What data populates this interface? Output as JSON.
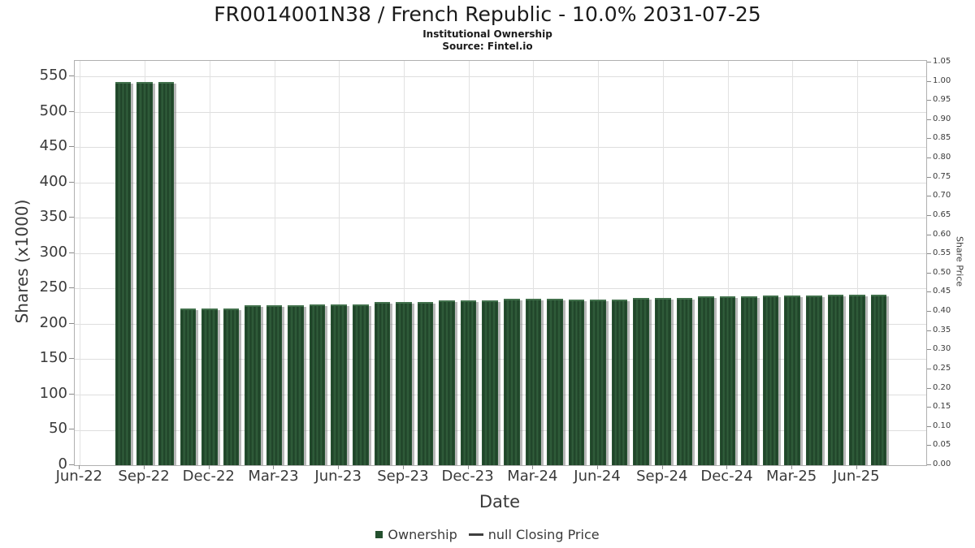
{
  "header": {
    "title": "FR0014001N38 / French Republic - 10.0% 2031-07-25",
    "subtitle": "Institutional Ownership",
    "source": "Source: Fintel.io"
  },
  "chart_data": {
    "type": "bar",
    "title": "FR0014001N38 / French Republic - 10.0% 2031-07-25",
    "subtitle": "Institutional Ownership",
    "source": "Source: Fintel.io",
    "series": [
      {
        "name": "Ownership",
        "marker": "square",
        "color": "#24502e",
        "values": [
          542,
          542,
          542,
          222,
          222,
          222,
          226,
          226,
          226,
          228,
          228,
          228,
          231,
          231,
          231,
          233,
          233,
          233,
          236,
          236,
          236,
          234,
          234,
          234,
          237,
          237,
          237,
          239,
          239,
          239,
          240,
          240,
          240,
          241,
          241,
          241
        ]
      },
      {
        "name": "null Closing Price",
        "marker": "dash",
        "color": "#3f3f3f",
        "values": []
      }
    ],
    "categories": [
      "Aug-22",
      "Sep-22",
      "Oct-22",
      "Nov-22",
      "Dec-22",
      "Jan-23",
      "Feb-23",
      "Mar-23",
      "Apr-23",
      "May-23",
      "Jun-23",
      "Jul-23",
      "Aug-23",
      "Sep-23",
      "Oct-23",
      "Nov-23",
      "Dec-23",
      "Jan-24",
      "Feb-24",
      "Mar-24",
      "Apr-24",
      "May-24",
      "Jun-24",
      "Jul-24",
      "Aug-24",
      "Sep-24",
      "Oct-24",
      "Nov-24",
      "Dec-24",
      "Jan-25",
      "Feb-25",
      "Mar-25",
      "Apr-25",
      "May-25",
      "Jun-25",
      "Jul-25"
    ],
    "xlabel": "Date",
    "ylabel_left": "Shares (x1000)",
    "ylabel_right": "Share Price",
    "ylim_left": [
      0,
      572
    ],
    "ylim_right": [
      0,
      1.054
    ],
    "yticks_left": [
      0,
      50,
      100,
      150,
      200,
      250,
      300,
      350,
      400,
      450,
      500,
      550
    ],
    "yticks_right": [
      "0.00",
      "0.05",
      "0.10",
      "0.15",
      "0.20",
      "0.25",
      "0.30",
      "0.35",
      "0.40",
      "0.45",
      "0.50",
      "0.55",
      "0.60",
      "0.65",
      "0.70",
      "0.75",
      "0.80",
      "0.85",
      "0.90",
      "0.95",
      "1.00",
      "1.05"
    ],
    "xticks": [
      "Jun-22",
      "Sep-22",
      "Dec-22",
      "Mar-23",
      "Jun-23",
      "Sep-23",
      "Dec-23",
      "Mar-24",
      "Jun-24",
      "Sep-24",
      "Dec-24",
      "Mar-25",
      "Jun-25"
    ],
    "grid": true,
    "legend_position": "bottom",
    "bar_color": "#24502e",
    "bar_shadow_color": "#7d7d7d"
  }
}
